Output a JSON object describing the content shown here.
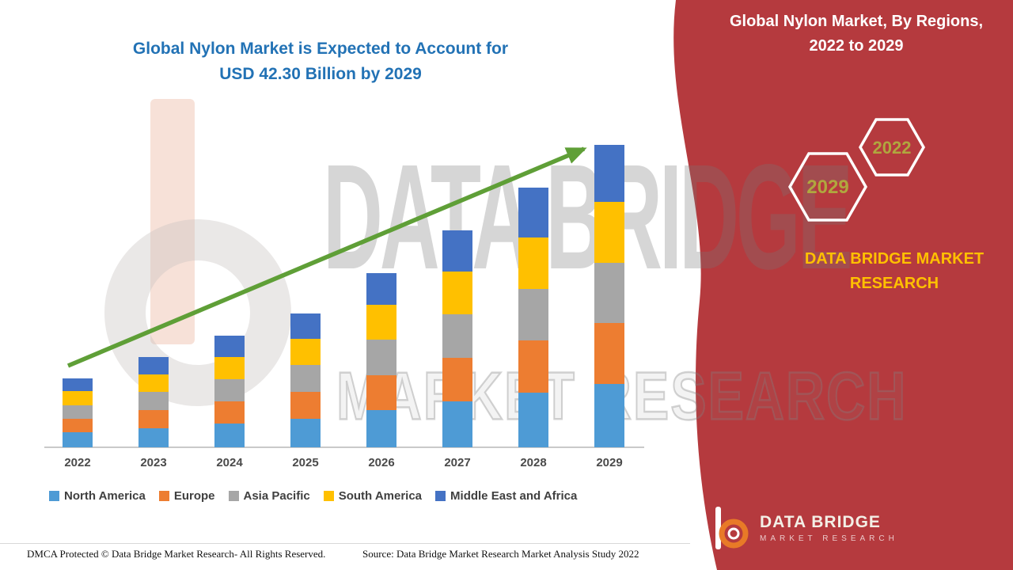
{
  "left_chart": {
    "title_line1": "Global Nylon Market is Expected to Account for",
    "title_line2": "USD 42.30 Billion by 2029",
    "footer_dmca": "DMCA Protected © Data Bridge Market Research- All Rights Reserved.",
    "footer_source": "Source: Data Bridge Market Research Market Analysis Study 2022"
  },
  "watermark": {
    "line1": "DATA BRIDGE",
    "line2": "MARKET RESEARCH"
  },
  "right_panel": {
    "title_line1": "Global Nylon Market, By Regions,",
    "title_line2": "2022 to 2029",
    "hexagons": [
      {
        "label": "2029"
      },
      {
        "label": "2022"
      }
    ],
    "brand_line1": "DATA BRIDGE MARKET",
    "brand_line2": "RESEARCH",
    "logo_text": "DATA BRIDGE",
    "logo_subtext": "MARKET RESEARCH",
    "bg_color": "#b53a3e",
    "accent_color": "#ffc000",
    "hex_label_color": "#b0a73e"
  },
  "chart_data": {
    "type": "bar",
    "stacked": true,
    "title": "Global Nylon Market is Expected to Account for USD 42.30 Billion by 2029",
    "unit": "USD Billion",
    "categories": [
      "2022",
      "2023",
      "2024",
      "2025",
      "2026",
      "2027",
      "2028",
      "2029"
    ],
    "series": [
      {
        "name": "North America",
        "color": "#4e9bd5",
        "values": [
          2.1,
          2.7,
          3.3,
          4.0,
          5.2,
          6.4,
          7.7,
          8.9
        ]
      },
      {
        "name": "Europe",
        "color": "#ed7d31",
        "values": [
          1.9,
          2.5,
          3.1,
          3.8,
          4.9,
          6.1,
          7.3,
          8.5
        ]
      },
      {
        "name": "Asia Pacific",
        "color": "#a6a6a6",
        "values": [
          1.9,
          2.5,
          3.1,
          3.7,
          4.9,
          6.1,
          7.2,
          8.4
        ]
      },
      {
        "name": "South America",
        "color": "#ffc000",
        "values": [
          1.9,
          2.5,
          3.1,
          3.7,
          4.9,
          6.0,
          7.2,
          8.5
        ]
      },
      {
        "name": "Middle East and Africa",
        "color": "#4472c4",
        "values": [
          1.8,
          2.4,
          3.0,
          3.5,
          4.5,
          5.7,
          6.9,
          8.0
        ]
      }
    ],
    "totals": [
      9.6,
      12.6,
      15.6,
      18.7,
      24.4,
      30.3,
      36.3,
      42.3
    ],
    "y_axis_visible": false,
    "grid": false,
    "legend_position": "bottom",
    "trend_arrow": true,
    "trend_arrow_color": "#5f9f37"
  }
}
